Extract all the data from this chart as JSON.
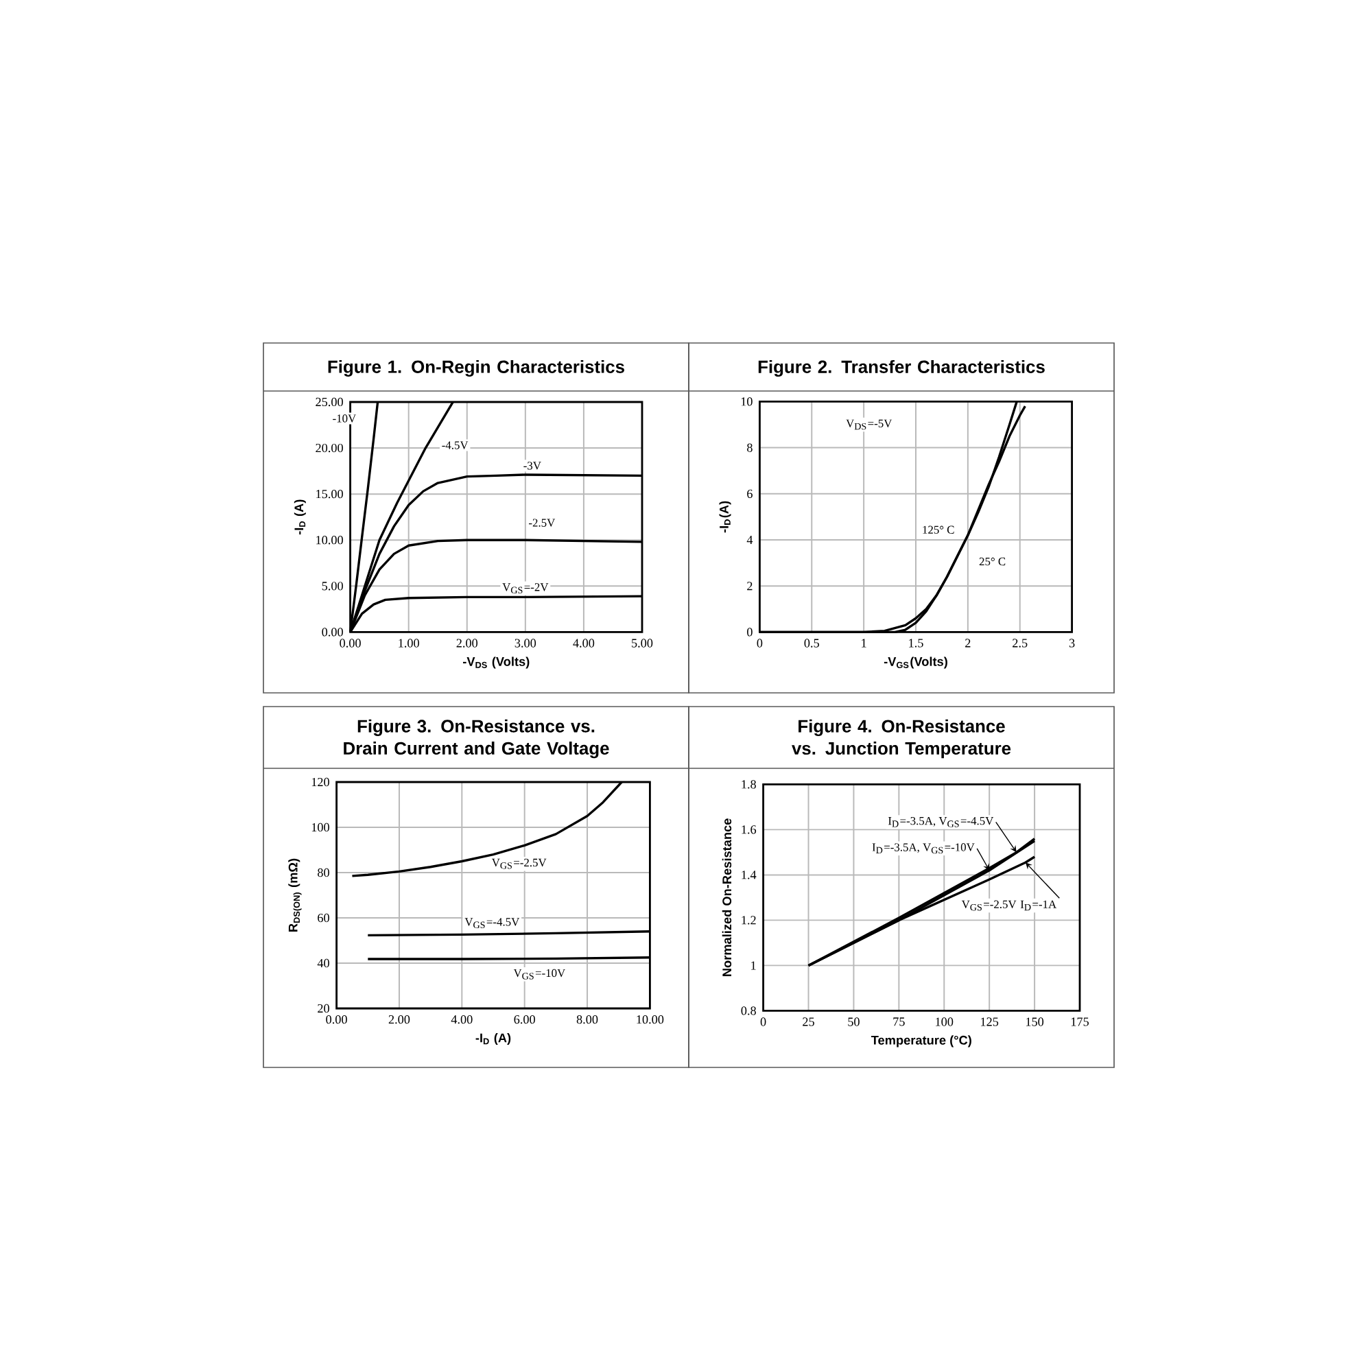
{
  "chart_data": [
    {
      "type": "line",
      "title": "Figure 1. On-Regin Characteristics",
      "xlabel": "-V$_{DS}$ (Volts)",
      "ylabel": "-I$_{D}$ (A)",
      "grid": true,
      "line_style": "solid",
      "marker": "none",
      "xlim": [
        0,
        5
      ],
      "ylim": [
        0,
        25
      ],
      "xticks": [
        {
          "value": 0,
          "label": "0.00"
        },
        {
          "value": 1,
          "label": "1.00"
        },
        {
          "value": 2,
          "label": "2.00"
        },
        {
          "value": 3,
          "label": "3.00"
        },
        {
          "value": 4,
          "label": "4.00"
        },
        {
          "value": 5,
          "label": "5.00"
        }
      ],
      "yticks": [
        {
          "value": 0,
          "label": "0.00"
        },
        {
          "value": 5,
          "label": "5.00"
        },
        {
          "value": 10,
          "label": "10.00"
        },
        {
          "value": 15,
          "label": "15.00"
        },
        {
          "value": 20,
          "label": "20.00"
        },
        {
          "value": 25,
          "label": "25.00"
        }
      ],
      "series": [
        {
          "name": "-10V",
          "color": "#000000",
          "x": [
            0,
            0.1,
            0.2,
            0.3,
            0.4,
            0.47
          ],
          "values": [
            0,
            5,
            10.3,
            15.5,
            21,
            25
          ]
        },
        {
          "name": "-4.5V",
          "color": "#000000",
          "x": [
            0,
            0.25,
            0.5,
            0.8,
            1.29,
            1.76
          ],
          "values": [
            0,
            5,
            10,
            14,
            20,
            25
          ]
        },
        {
          "name": "-3V",
          "color": "#000000",
          "x": [
            0,
            0.25,
            0.5,
            0.75,
            1.0,
            1.25,
            1.5,
            2.0,
            2.5,
            3,
            5
          ],
          "values": [
            0,
            4.5,
            8.5,
            11.5,
            13.8,
            15.3,
            16.2,
            16.9,
            17.0,
            17.1,
            17.0
          ]
        },
        {
          "name": "-2.5V",
          "color": "#000000",
          "x": [
            0,
            0.25,
            0.5,
            0.75,
            1.0,
            1.5,
            2,
            3,
            5
          ],
          "values": [
            0,
            4,
            6.8,
            8.5,
            9.4,
            9.9,
            10,
            10,
            9.8
          ]
        },
        {
          "name": "V$_{GS}$=-2V",
          "color": "#000000",
          "x": [
            0,
            0.2,
            0.4,
            0.6,
            1.0,
            2,
            3,
            5
          ],
          "values": [
            0,
            2,
            3.0,
            3.5,
            3.7,
            3.8,
            3.8,
            3.9
          ]
        }
      ]
    },
    {
      "type": "line",
      "title": "Figure 2. Transfer Characteristics",
      "xlabel": "-V$_{GS}$(Volts)",
      "ylabel": "-I$_{D}$(A)",
      "grid": true,
      "line_style": "solid",
      "marker": "none",
      "xlim": [
        0,
        3
      ],
      "ylim": [
        0,
        10
      ],
      "xticks": [
        0,
        0.5,
        1,
        1.5,
        2,
        2.5,
        3
      ],
      "yticks": [
        0,
        2,
        4,
        6,
        8,
        10
      ],
      "annotations": [
        "V$_{DS}$=-5V"
      ],
      "series": [
        {
          "name": "125° C",
          "color": "#000000",
          "x": [
            0,
            1.0,
            1.2,
            1.4,
            1.5,
            1.6,
            1.7,
            1.8,
            1.9,
            2.0,
            2.1,
            2.2,
            2.3,
            2.4,
            2.47
          ],
          "values": [
            0,
            0,
            0.05,
            0.3,
            0.6,
            1.0,
            1.6,
            2.4,
            3.3,
            4.2,
            5.2,
            6.3,
            7.6,
            9.0,
            10
          ]
        },
        {
          "name": "25° C",
          "color": "#000000",
          "x": [
            0,
            1.3,
            1.4,
            1.5,
            1.6,
            1.7,
            1.8,
            1.9,
            2.0,
            2.1,
            2.2,
            2.3,
            2.4,
            2.5,
            2.55
          ],
          "values": [
            0,
            0,
            0.1,
            0.4,
            0.9,
            1.6,
            2.4,
            3.3,
            4.2,
            5.3,
            6.4,
            7.4,
            8.5,
            9.4,
            9.8
          ]
        }
      ]
    },
    {
      "type": "line",
      "title": "Figure 3. On-Resistance vs. Drain Current and Gate Voltage",
      "xlabel": "-I$_{D}$ (A)",
      "ylabel": "R$_{DS(ON)}$ (mΩ)",
      "grid": true,
      "line_style": "solid",
      "marker": "none",
      "xlim": [
        0,
        10
      ],
      "ylim": [
        20,
        120
      ],
      "xticks": [
        {
          "value": 0,
          "label": "0.00"
        },
        {
          "value": 2,
          "label": "2.00"
        },
        {
          "value": 4,
          "label": "4.00"
        },
        {
          "value": 6,
          "label": "6.00"
        },
        {
          "value": 8,
          "label": "8.00"
        },
        {
          "value": 10,
          "label": "10.00"
        }
      ],
      "yticks": [
        20,
        40,
        60,
        80,
        100,
        120
      ],
      "series": [
        {
          "name": "V$_{GS}$=-2.5V",
          "color": "#000000",
          "x": [
            0.5,
            1,
            2,
            3,
            4,
            5,
            6,
            7,
            8,
            8.5,
            9.1
          ],
          "values": [
            78.5,
            79,
            80.5,
            82.5,
            85,
            88,
            92,
            97,
            105,
            111,
            120
          ]
        },
        {
          "name": "V$_{GS}$=-4.5V",
          "color": "#000000",
          "x": [
            1,
            4,
            7,
            10
          ],
          "values": [
            52.3,
            52.6,
            53.2,
            54
          ]
        },
        {
          "name": "V$_{GS}$=-10V",
          "color": "#000000",
          "x": [
            1,
            4,
            7,
            10
          ],
          "values": [
            41.8,
            41.8,
            42,
            42.5
          ]
        }
      ]
    },
    {
      "type": "line",
      "title": "Figure 4. On-Resistance vs. Junction Temperature",
      "xlabel": "Temperature (°C)",
      "ylabel": "Normalized On-Resistance",
      "grid": true,
      "line_style": "solid",
      "marker": "none",
      "xlim": [
        0,
        175
      ],
      "ylim": [
        0.8,
        1.8
      ],
      "xticks": [
        0,
        25,
        50,
        75,
        100,
        125,
        150,
        175
      ],
      "yticks": [
        0.8,
        1,
        1.2,
        1.4,
        1.6,
        1.8
      ],
      "series": [
        {
          "name": "I$_{D}$=-3.5A, V$_{GS}$=-4.5V",
          "color": "#000000",
          "x": [
            25,
            75,
            125,
            140,
            150
          ],
          "values": [
            1,
            1.21,
            1.43,
            1.5,
            1.56
          ]
        },
        {
          "name": "I$_{D}$=-3.5A, V$_{GS}$=-10V",
          "color": "#000000",
          "x": [
            25,
            75,
            125,
            150
          ],
          "values": [
            1,
            1.2,
            1.42,
            1.55
          ]
        },
        {
          "name": "V$_{GS}$=-2.5V I$_{D}$=-1A",
          "color": "#000000",
          "x": [
            25,
            75,
            125,
            145,
            150
          ],
          "values": [
            1,
            1.2,
            1.38,
            1.455,
            1.48
          ]
        }
      ]
    }
  ]
}
